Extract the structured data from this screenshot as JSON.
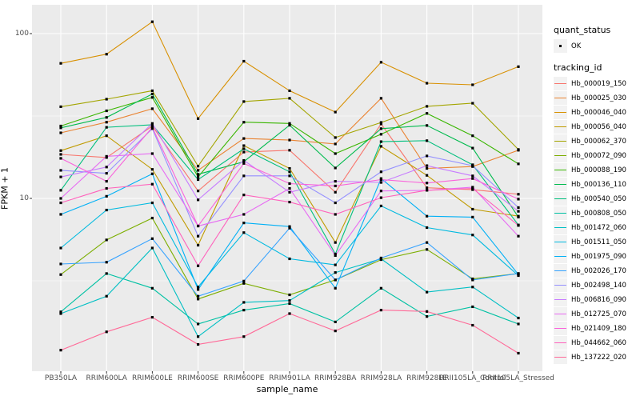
{
  "panel": {
    "bg_color": "#EBEBEB",
    "grid_color": "#FFFFFF",
    "tick_color": "#333333",
    "tick_label_color": "#4D4D4D",
    "point_color": "#000000",
    "key_bg_color": "#F2F2F2"
  },
  "legend": {
    "quant_status_title": "quant_status",
    "quant_status_items": [
      {
        "label": "OK",
        "marker": "black-square-point"
      }
    ],
    "tracking_id_title": "tracking_id"
  },
  "chart_data": {
    "type": "line",
    "title": "",
    "xlabel": "sample_name",
    "ylabel": "FPKM + 1",
    "y_scale": "log10",
    "ylim": [
      0.89,
      150
    ],
    "grid": "on",
    "legend_position": "right",
    "marker": "black-square",
    "y_ticks": [
      {
        "label": "100",
        "value": 100
      },
      {
        "label": "10",
        "value": 10
      }
    ],
    "y_minor": [
      3.1623,
      31.623
    ],
    "categories": [
      "PB350LA",
      "RRIM600LA",
      "RRIM600LE",
      "RRIM600SE",
      "RRIM600PE",
      "RRIM901LA",
      "RRIM928BA",
      "RRIM928LA",
      "RRIM928LE",
      "RRII105LA_Control",
      "RRII105LA_Stressed"
    ],
    "series": [
      {
        "name": "Hb_000019_150",
        "color": "#F8766D",
        "values": [
          18.5,
          17.7,
          27.5,
          11.1,
          19.1,
          19.6,
          10.9,
          28.3,
          11.6,
          11.3,
          10.6
        ]
      },
      {
        "name": "Hb_000025_030",
        "color": "#EA8331",
        "values": [
          25,
          29,
          35,
          14.8,
          23.1,
          22.6,
          21.4,
          40.5,
          15.2,
          15.6,
          19.6
        ]
      },
      {
        "name": "Hb_000046_040",
        "color": "#D89000",
        "values": [
          66,
          75,
          118,
          30.5,
          68,
          45,
          33.4,
          67,
          50,
          48.9,
          63
        ]
      },
      {
        "name": "Hb_000056_040",
        "color": "#C09B00",
        "values": [
          19.5,
          24,
          15,
          5.2,
          20.9,
          15.2,
          5.4,
          20.7,
          13.8,
          8.6,
          7.8
        ]
      },
      {
        "name": "Hb_000062_370",
        "color": "#A3A500",
        "values": [
          36,
          40,
          45,
          15.7,
          38.7,
          40.5,
          23.4,
          28.9,
          36.2,
          37.8,
          19.8
        ]
      },
      {
        "name": "Hb_000072_090",
        "color": "#7CAE00",
        "values": [
          3.45,
          5.6,
          7.6,
          2.45,
          3.05,
          2.6,
          3.2,
          4.25,
          4.9,
          3.25,
          3.5
        ]
      },
      {
        "name": "Hb_000088_190",
        "color": "#39B600",
        "values": [
          27.5,
          34,
          41,
          13.5,
          29,
          28.5,
          18.7,
          24.5,
          32.8,
          24,
          16.2
        ]
      },
      {
        "name": "Hb_000136_110",
        "color": "#00BB4E",
        "values": [
          26.8,
          31,
          43,
          14,
          16.7,
          27.8,
          15.3,
          26.5,
          27.7,
          20.2,
          7.7
        ]
      },
      {
        "name": "Hb_000540_050",
        "color": "#00BF7D",
        "values": [
          11.2,
          27,
          28,
          13,
          20,
          14.5,
          4.6,
          22.1,
          22.4,
          16,
          6.9
        ]
      },
      {
        "name": "Hb_000808_050",
        "color": "#00C1A3",
        "values": [
          2.05,
          3.5,
          2.85,
          1.73,
          2.1,
          2.3,
          1.78,
          2.85,
          1.92,
          2.2,
          1.73
        ]
      },
      {
        "name": "Hb_001472_060",
        "color": "#00BFC4",
        "values": [
          2.0,
          2.55,
          5.0,
          1.45,
          2.34,
          2.4,
          3.55,
          4.3,
          2.7,
          2.9,
          1.88
        ]
      },
      {
        "name": "Hb_001511_050",
        "color": "#00BAE0",
        "values": [
          5.0,
          8.5,
          9.4,
          2.9,
          6.2,
          4.3,
          3.95,
          9.0,
          6.65,
          6.0,
          3.4
        ]
      },
      {
        "name": "Hb_001975_090",
        "color": "#00B0F6",
        "values": [
          8.0,
          10.3,
          14.1,
          2.8,
          7.1,
          6.75,
          2.85,
          13.2,
          7.8,
          7.7,
          3.45
        ]
      },
      {
        "name": "Hb_002026_170",
        "color": "#35A2FF",
        "values": [
          4.0,
          4.1,
          5.7,
          2.55,
          3.15,
          6.6,
          3.2,
          4.35,
          5.4,
          3.2,
          3.5
        ]
      },
      {
        "name": "Hb_002498_140",
        "color": "#9590FF",
        "values": [
          14.8,
          14.2,
          26.5,
          5.9,
          13.7,
          13.7,
          9.4,
          14.5,
          18.1,
          15.8,
          8.8
        ]
      },
      {
        "name": "Hb_006816_090",
        "color": "#C77CFF",
        "values": [
          13.5,
          15.5,
          28.5,
          9.8,
          17.0,
          10.9,
          12.7,
          12.5,
          15.8,
          13.7,
          8.35
        ]
      },
      {
        "name": "Hb_012725_070",
        "color": "#E76BF3",
        "values": [
          10,
          18,
          18.7,
          6.8,
          8.0,
          11.5,
          4.5,
          11.1,
          11.2,
          11.7,
          5.9
        ]
      },
      {
        "name": "Hb_021409_180",
        "color": "#FA62DB",
        "values": [
          17.5,
          12.7,
          27,
          6.8,
          16.3,
          12.3,
          11.9,
          13.0,
          12.4,
          13.2,
          9.9
        ]
      },
      {
        "name": "Hb_044662_060",
        "color": "#FF62BC",
        "values": [
          9.4,
          11.5,
          12.2,
          3.9,
          10.5,
          9.5,
          8.0,
          10.1,
          11.2,
          11.5,
          6.85
        ]
      },
      {
        "name": "Hb_137222_020",
        "color": "#FF6A98",
        "values": [
          1.2,
          1.55,
          1.9,
          1.3,
          1.45,
          2.0,
          1.57,
          2.1,
          2.06,
          1.7,
          1.15
        ]
      }
    ]
  }
}
